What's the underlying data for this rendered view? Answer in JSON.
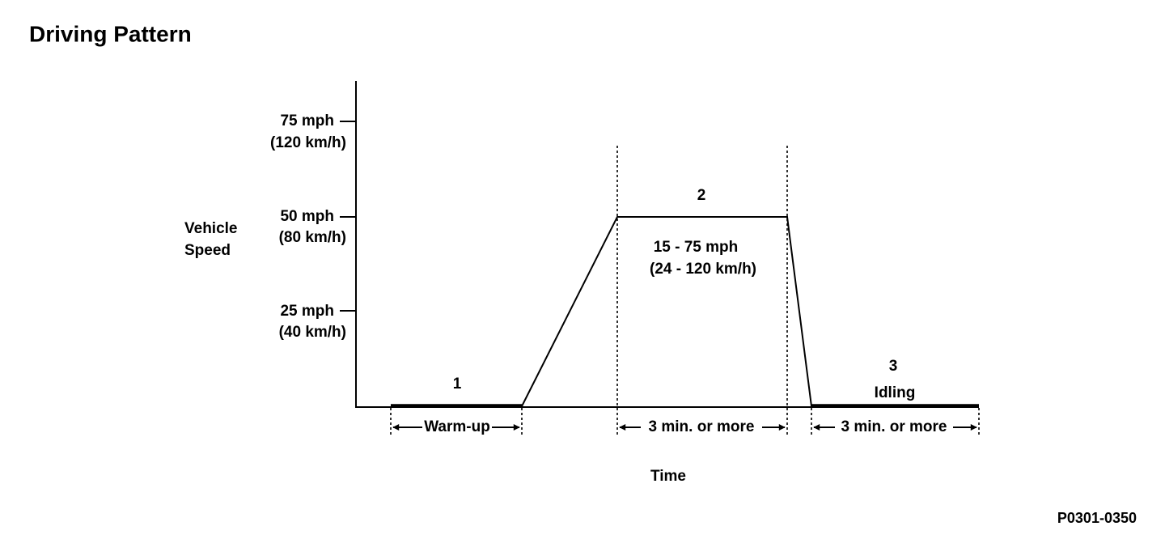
{
  "header": {
    "title": "Driving Pattern"
  },
  "y_axis": {
    "label": [
      "Vehicle",
      "Speed"
    ],
    "ticks": [
      {
        "speed": "75 mph",
        "metric": "(120 km/h)"
      },
      {
        "speed": "50 mph",
        "metric": "(80 km/h)"
      },
      {
        "speed": "25 mph",
        "metric": "(40 km/h)"
      }
    ]
  },
  "phases": [
    {
      "number": "1",
      "duration": "Warm-up"
    },
    {
      "number": "2",
      "range": [
        "15 - 75 mph",
        "(24 - 120 km/h)"
      ],
      "duration": "3 min. or more"
    },
    {
      "number": "3",
      "label": "Idling",
      "duration": "3 min. or more"
    }
  ],
  "x_axis": {
    "label": "Time"
  },
  "figure_id": "P0301-0350"
}
